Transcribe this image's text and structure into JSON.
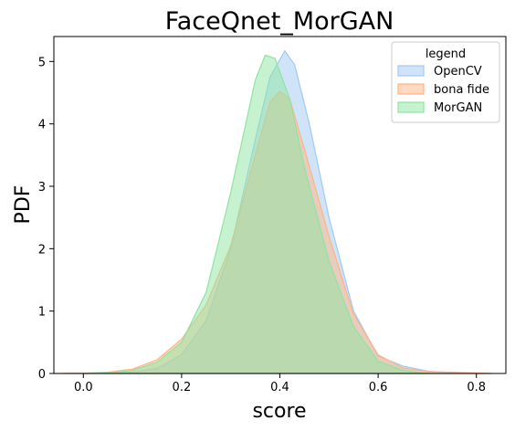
{
  "chart_data": {
    "type": "area",
    "title": "FaceQnet_MorGAN",
    "xlabel": "score",
    "ylabel": "PDF",
    "xlim": [
      -0.06,
      0.86
    ],
    "ylim": [
      0,
      5.4
    ],
    "xticks": [
      "0.0",
      "0.2",
      "0.4",
      "0.6",
      "0.8"
    ],
    "yticks": [
      "0",
      "1",
      "2",
      "3",
      "4",
      "5"
    ],
    "grid": false,
    "legend": {
      "title": "legend",
      "placement": "top-right"
    },
    "series": [
      {
        "name": "OpenCV",
        "fill": "#a1c9f4",
        "stroke": "#a1c9f4",
        "x": [
          -0.04,
          0.0,
          0.05,
          0.1,
          0.15,
          0.2,
          0.25,
          0.3,
          0.35,
          0.38,
          0.41,
          0.43,
          0.46,
          0.5,
          0.55,
          0.6,
          0.65,
          0.7,
          0.75,
          0.8,
          0.83
        ],
        "y": [
          0.0,
          0.005,
          0.01,
          0.02,
          0.08,
          0.3,
          0.85,
          2.0,
          3.75,
          4.75,
          5.17,
          4.95,
          4.0,
          2.5,
          1.0,
          0.28,
          0.12,
          0.04,
          0.01,
          0.0,
          0.0
        ]
      },
      {
        "name": "bona fide",
        "fill": "#ffb482",
        "stroke": "#ffb482",
        "x": [
          -0.06,
          0.0,
          0.05,
          0.1,
          0.15,
          0.2,
          0.25,
          0.3,
          0.35,
          0.38,
          0.4,
          0.42,
          0.45,
          0.5,
          0.55,
          0.6,
          0.65,
          0.7,
          0.75,
          0.8,
          0.83
        ],
        "y": [
          0.0,
          0.005,
          0.02,
          0.07,
          0.22,
          0.55,
          1.1,
          2.05,
          3.5,
          4.35,
          4.52,
          4.4,
          3.6,
          2.2,
          0.95,
          0.3,
          0.09,
          0.03,
          0.02,
          0.01,
          0.0
        ]
      },
      {
        "name": "MorGAN",
        "fill": "#8de5a1",
        "stroke": "#8de5a1",
        "x": [
          0.0,
          0.05,
          0.1,
          0.15,
          0.2,
          0.25,
          0.3,
          0.35,
          0.37,
          0.39,
          0.42,
          0.45,
          0.5,
          0.55,
          0.6,
          0.65,
          0.7
        ],
        "y": [
          0.0,
          0.01,
          0.05,
          0.18,
          0.5,
          1.3,
          2.9,
          4.7,
          5.1,
          5.05,
          4.4,
          3.3,
          1.8,
          0.75,
          0.2,
          0.05,
          0.0
        ]
      }
    ]
  }
}
